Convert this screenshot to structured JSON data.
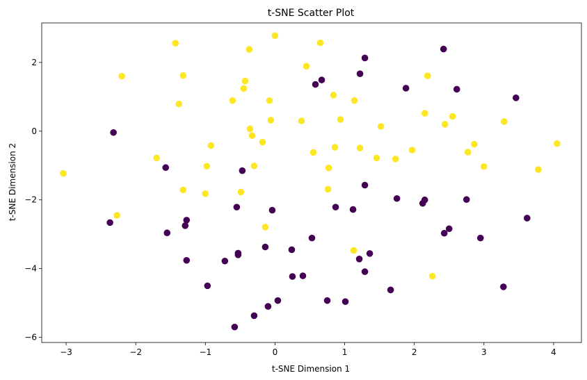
{
  "chart_data": {
    "type": "scatter",
    "title": "t-SNE Scatter Plot",
    "xlabel": "t-SNE Dimension 1",
    "ylabel": "t-SNE Dimension 2",
    "xlim": [
      -3.35,
      4.4
    ],
    "ylim": [
      -6.15,
      3.15
    ],
    "xticks": [
      -3,
      -2,
      -1,
      0,
      1,
      2,
      3,
      4
    ],
    "yticks": [
      -6,
      -4,
      -2,
      0,
      2
    ],
    "grid": false,
    "colors": {
      "class_0": "#440154",
      "class_1": "#fde725"
    },
    "points": [
      {
        "x": -3.04,
        "y": -1.23,
        "c": 1
      },
      {
        "x": -2.37,
        "y": -2.66,
        "c": 0
      },
      {
        "x": -2.32,
        "y": -0.04,
        "c": 0
      },
      {
        "x": -2.27,
        "y": -2.45,
        "c": 1
      },
      {
        "x": -2.2,
        "y": 1.6,
        "c": 1
      },
      {
        "x": -1.7,
        "y": -0.78,
        "c": 1
      },
      {
        "x": -1.57,
        "y": -1.06,
        "c": 0
      },
      {
        "x": -1.55,
        "y": -2.96,
        "c": 0
      },
      {
        "x": -1.43,
        "y": 2.56,
        "c": 1
      },
      {
        "x": -1.38,
        "y": 0.79,
        "c": 1
      },
      {
        "x": -1.32,
        "y": 1.62,
        "c": 1
      },
      {
        "x": -1.32,
        "y": -1.71,
        "c": 1
      },
      {
        "x": -1.29,
        "y": -2.75,
        "c": 0
      },
      {
        "x": -1.27,
        "y": -2.59,
        "c": 0
      },
      {
        "x": -1.27,
        "y": -3.76,
        "c": 0
      },
      {
        "x": -1.0,
        "y": -1.82,
        "c": 1
      },
      {
        "x": -0.98,
        "y": -1.02,
        "c": 1
      },
      {
        "x": -0.97,
        "y": -4.5,
        "c": 0
      },
      {
        "x": -0.92,
        "y": -0.42,
        "c": 1
      },
      {
        "x": -0.72,
        "y": -3.78,
        "c": 0
      },
      {
        "x": -0.61,
        "y": 0.89,
        "c": 1
      },
      {
        "x": -0.58,
        "y": -5.7,
        "c": 0
      },
      {
        "x": -0.55,
        "y": -2.21,
        "c": 0
      },
      {
        "x": -0.53,
        "y": -3.55,
        "c": 0
      },
      {
        "x": -0.53,
        "y": -3.6,
        "c": 0
      },
      {
        "x": -0.49,
        "y": -1.77,
        "c": 1
      },
      {
        "x": -0.47,
        "y": -1.15,
        "c": 0
      },
      {
        "x": -0.45,
        "y": 1.24,
        "c": 1
      },
      {
        "x": -0.43,
        "y": 1.46,
        "c": 1
      },
      {
        "x": -0.37,
        "y": 2.38,
        "c": 1
      },
      {
        "x": -0.36,
        "y": 0.07,
        "c": 1
      },
      {
        "x": -0.33,
        "y": -0.13,
        "c": 1
      },
      {
        "x": -0.3,
        "y": -1.01,
        "c": 1
      },
      {
        "x": -0.3,
        "y": -5.37,
        "c": 0
      },
      {
        "x": -0.18,
        "y": -0.32,
        "c": 1
      },
      {
        "x": -0.14,
        "y": -2.79,
        "c": 1
      },
      {
        "x": -0.14,
        "y": -3.37,
        "c": 0
      },
      {
        "x": -0.1,
        "y": -5.1,
        "c": 0
      },
      {
        "x": -0.08,
        "y": 0.89,
        "c": 1
      },
      {
        "x": -0.06,
        "y": 0.32,
        "c": 1
      },
      {
        "x": -0.04,
        "y": -2.3,
        "c": 0
      },
      {
        "x": 0.0,
        "y": 2.78,
        "c": 1
      },
      {
        "x": 0.04,
        "y": -4.93,
        "c": 0
      },
      {
        "x": 0.24,
        "y": -3.45,
        "c": 0
      },
      {
        "x": 0.25,
        "y": -4.23,
        "c": 0
      },
      {
        "x": 0.38,
        "y": 0.3,
        "c": 1
      },
      {
        "x": 0.4,
        "y": -4.21,
        "c": 0
      },
      {
        "x": 0.45,
        "y": 1.89,
        "c": 1
      },
      {
        "x": 0.53,
        "y": -3.11,
        "c": 0
      },
      {
        "x": 0.55,
        "y": -0.62,
        "c": 1
      },
      {
        "x": 0.58,
        "y": 1.36,
        "c": 0
      },
      {
        "x": 0.65,
        "y": 2.57,
        "c": 1
      },
      {
        "x": 0.67,
        "y": 1.49,
        "c": 0
      },
      {
        "x": 0.75,
        "y": -4.93,
        "c": 0
      },
      {
        "x": 0.76,
        "y": -1.69,
        "c": 1
      },
      {
        "x": 0.77,
        "y": -1.07,
        "c": 1
      },
      {
        "x": 0.84,
        "y": 1.05,
        "c": 1
      },
      {
        "x": 0.86,
        "y": -0.47,
        "c": 1
      },
      {
        "x": 0.87,
        "y": -2.21,
        "c": 0
      },
      {
        "x": 0.94,
        "y": 0.34,
        "c": 1
      },
      {
        "x": 1.01,
        "y": -4.96,
        "c": 0
      },
      {
        "x": 1.12,
        "y": -2.28,
        "c": 0
      },
      {
        "x": 1.13,
        "y": -3.47,
        "c": 1
      },
      {
        "x": 1.14,
        "y": 0.89,
        "c": 1
      },
      {
        "x": 1.21,
        "y": -3.72,
        "c": 0
      },
      {
        "x": 1.22,
        "y": -0.49,
        "c": 1
      },
      {
        "x": 1.22,
        "y": 1.67,
        "c": 0
      },
      {
        "x": 1.29,
        "y": 2.13,
        "c": 0
      },
      {
        "x": 1.29,
        "y": -1.57,
        "c": 0
      },
      {
        "x": 1.29,
        "y": -4.09,
        "c": 0
      },
      {
        "x": 1.36,
        "y": -3.56,
        "c": 0
      },
      {
        "x": 1.46,
        "y": -0.78,
        "c": 1
      },
      {
        "x": 1.52,
        "y": 0.14,
        "c": 1
      },
      {
        "x": 1.66,
        "y": -4.62,
        "c": 0
      },
      {
        "x": 1.73,
        "y": -0.81,
        "c": 1
      },
      {
        "x": 1.75,
        "y": -1.96,
        "c": 0
      },
      {
        "x": 1.88,
        "y": 1.25,
        "c": 0
      },
      {
        "x": 1.97,
        "y": -0.55,
        "c": 1
      },
      {
        "x": 2.12,
        "y": -2.1,
        "c": 0
      },
      {
        "x": 2.15,
        "y": -2.0,
        "c": 0
      },
      {
        "x": 2.15,
        "y": 0.52,
        "c": 1
      },
      {
        "x": 2.19,
        "y": 1.61,
        "c": 1
      },
      {
        "x": 2.26,
        "y": -4.22,
        "c": 1
      },
      {
        "x": 2.42,
        "y": 2.39,
        "c": 0
      },
      {
        "x": 2.43,
        "y": -2.97,
        "c": 0
      },
      {
        "x": 2.44,
        "y": 0.2,
        "c": 1
      },
      {
        "x": 2.5,
        "y": -2.84,
        "c": 0
      },
      {
        "x": 2.55,
        "y": 0.43,
        "c": 1
      },
      {
        "x": 2.61,
        "y": 1.22,
        "c": 0
      },
      {
        "x": 2.75,
        "y": -1.99,
        "c": 0
      },
      {
        "x": 2.77,
        "y": -0.61,
        "c": 1
      },
      {
        "x": 2.86,
        "y": -0.38,
        "c": 1
      },
      {
        "x": 2.95,
        "y": -3.11,
        "c": 0
      },
      {
        "x": 3.0,
        "y": -1.03,
        "c": 1
      },
      {
        "x": 3.28,
        "y": -4.53,
        "c": 0
      },
      {
        "x": 3.29,
        "y": 0.28,
        "c": 1
      },
      {
        "x": 3.46,
        "y": 0.97,
        "c": 0
      },
      {
        "x": 3.62,
        "y": -2.53,
        "c": 0
      },
      {
        "x": 3.78,
        "y": -1.12,
        "c": 1
      },
      {
        "x": 4.05,
        "y": -0.36,
        "c": 1
      }
    ]
  }
}
